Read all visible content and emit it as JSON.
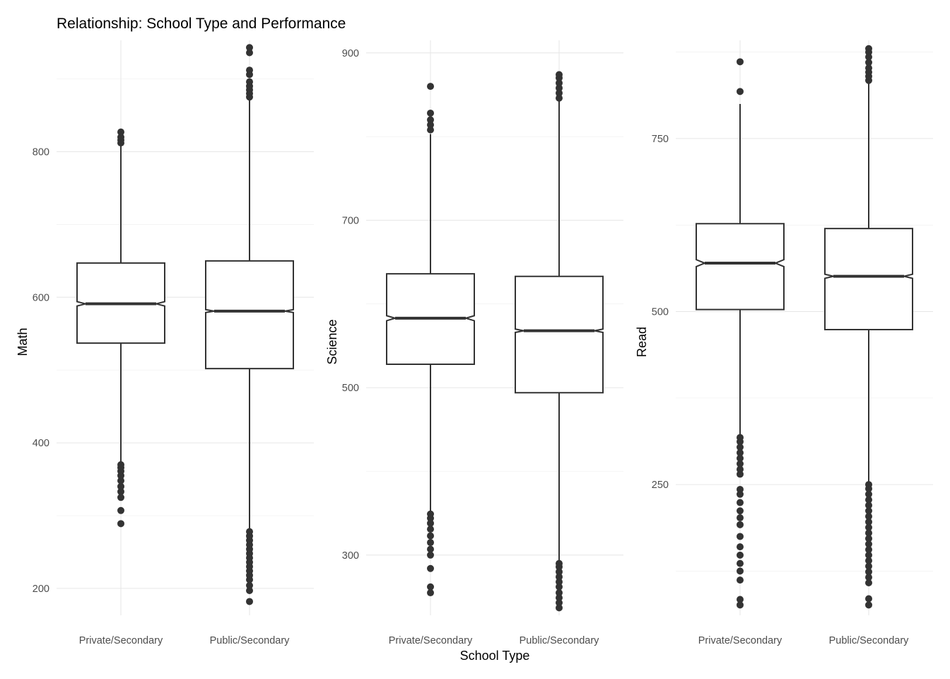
{
  "chart_data": {
    "type": "boxplot",
    "title": "Relationship: School Type and Performance",
    "xlabel": "School Type",
    "notched": true,
    "grid": true,
    "box_color": "#333333",
    "categories": [
      "Private/Secondary",
      "Public/Secondary"
    ],
    "panels": [
      {
        "ylabel": "Math",
        "ylim": [
          163,
          953
        ],
        "yticks": [
          200,
          400,
          600,
          800
        ],
        "boxes": [
          {
            "category": "Private/Secondary",
            "q1": 537,
            "median": 591,
            "q3": 647,
            "whisker_low": 372,
            "whisker_high": 809,
            "notch_low": 588,
            "notch_high": 594,
            "outliers": [
              289,
              307,
              325,
              333,
              340,
              348,
              355,
              361,
              366,
              370,
              812,
              816,
              820,
              827
            ]
          },
          {
            "category": "Public/Secondary",
            "q1": 502,
            "median": 581,
            "q3": 650,
            "whisker_low": 280,
            "whisker_high": 872,
            "notch_low": 579,
            "notch_high": 583,
            "outliers": [
              182,
              197,
              204,
              212,
              218,
              224,
              230,
              236,
              242,
              248,
              254,
              260,
              266,
              272,
              278,
              875,
              880,
              885,
              890,
              896,
              906,
              912,
              936,
              943
            ]
          }
        ]
      },
      {
        "ylabel": "Science",
        "ylim": [
          228,
          915
        ],
        "yticks": [
          300,
          500,
          700,
          900
        ],
        "boxes": [
          {
            "category": "Private/Secondary",
            "q1": 528,
            "median": 583,
            "q3": 636,
            "whisker_low": 350,
            "whisker_high": 803,
            "notch_low": 580,
            "notch_high": 586,
            "outliers": [
              255,
              262,
              284,
              300,
              307,
              315,
              323,
              331,
              338,
              344,
              349,
              808,
              814,
              820,
              828,
              860
            ]
          },
          {
            "category": "Public/Secondary",
            "q1": 494,
            "median": 568,
            "q3": 633,
            "whisker_low": 293,
            "whisker_high": 843,
            "notch_low": 566,
            "notch_high": 570,
            "outliers": [
              237,
              243,
              249,
              255,
              262,
              268,
              274,
              280,
              286,
              290,
              846,
              852,
              858,
              864,
              870,
              874
            ]
          }
        ]
      },
      {
        "ylabel": "Read",
        "ylim": [
          61,
          892
        ],
        "yticks": [
          250,
          500,
          750
        ],
        "boxes": [
          {
            "category": "Private/Secondary",
            "q1": 503,
            "median": 570,
            "q3": 627,
            "whisker_low": 320,
            "whisker_high": 800,
            "notch_low": 565,
            "notch_high": 575,
            "outliers": [
              76,
              84,
              112,
              125,
              136,
              148,
              160,
              175,
              192,
              202,
              212,
              224,
              236,
              243,
              265,
              272,
              280,
              288,
              296,
              304,
              312,
              318,
              818,
              861
            ]
          },
          {
            "category": "Public/Secondary",
            "q1": 474,
            "median": 551,
            "q3": 620,
            "whisker_low": 252,
            "whisker_high": 830,
            "notch_low": 548,
            "notch_high": 554,
            "outliers": [
              76,
              85,
              108,
              116,
              124,
              132,
              140,
              148,
              156,
              164,
              172,
              180,
              188,
              196,
              204,
              212,
              220,
              228,
              236,
              244,
              250,
              834,
              840,
              846,
              852,
              860,
              868,
              875,
              880
            ]
          }
        ]
      }
    ]
  }
}
